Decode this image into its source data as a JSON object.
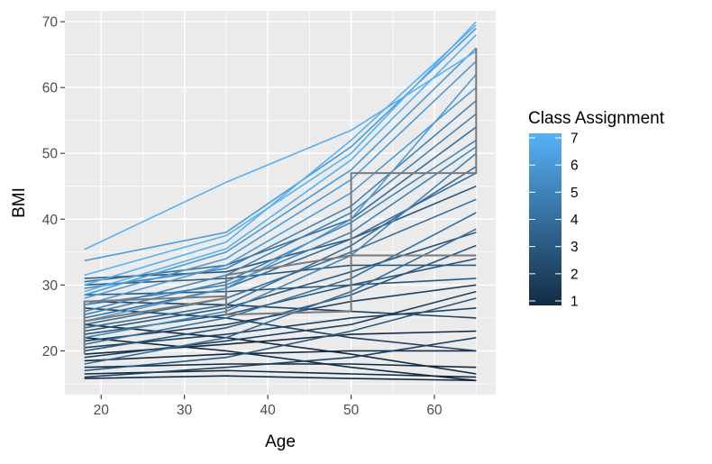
{
  "chart_data": {
    "type": "line",
    "xlabel": "Age",
    "ylabel": "BMI",
    "xlim": [
      15.65,
      67.35
    ],
    "ylim": [
      13.35,
      71.65
    ],
    "x_ticks": [
      20,
      30,
      40,
      50,
      60
    ],
    "y_ticks": [
      20,
      30,
      40,
      50,
      60,
      70
    ],
    "x_measurement_points": [
      18,
      35,
      50,
      65
    ],
    "grid": true,
    "background": "#EBEBEB",
    "legend": {
      "title": "Class Assignment",
      "position": "right",
      "type": "colorbar",
      "min": 1,
      "max": 7,
      "breaks": [
        1,
        2,
        3,
        4,
        5,
        6,
        7
      ],
      "low_color": "#132B43",
      "high_color": "#56B1F7"
    },
    "series": [
      {
        "class": 7,
        "values": [
          35.4,
          45.6,
          53.5,
          65.5
        ]
      },
      {
        "class": 6,
        "values": [
          33.7,
          38.0,
          51.0,
          69.0
        ]
      },
      {
        "class": 7,
        "values": [
          31.5,
          37.5,
          50.0,
          70.0
        ]
      },
      {
        "class": 7,
        "values": [
          29.0,
          35.5,
          49.0,
          68.0
        ]
      },
      {
        "class": 6,
        "values": [
          28.0,
          34.0,
          46.0,
          64.0
        ]
      },
      {
        "class": 6,
        "values": [
          27.0,
          33.0,
          44.0,
          60.0
        ]
      },
      {
        "class": 5,
        "values": [
          26.0,
          31.5,
          41.0,
          56.0
        ]
      },
      {
        "class": 5,
        "values": [
          25.5,
          30.5,
          39.5,
          52.0
        ]
      },
      {
        "class": 4,
        "values": [
          25.0,
          29.5,
          37.0,
          47.0
        ]
      },
      {
        "class": 4,
        "values": [
          24.0,
          28.0,
          35.0,
          43.0
        ]
      },
      {
        "class": 3,
        "values": [
          23.0,
          26.5,
          32.0,
          38.0
        ]
      },
      {
        "class": 3,
        "values": [
          22.5,
          25.5,
          30.0,
          34.0
        ]
      },
      {
        "class": 2,
        "values": [
          21.5,
          24.0,
          27.5,
          30.0
        ]
      },
      {
        "class": 2,
        "values": [
          20.5,
          22.5,
          25.0,
          26.5
        ]
      },
      {
        "class": 1,
        "values": [
          19.5,
          21.0,
          22.5,
          23.0
        ]
      },
      {
        "class": 1,
        "values": [
          18.5,
          19.5,
          20.0,
          20.0
        ]
      },
      {
        "class": 1,
        "values": [
          17.5,
          18.0,
          18.0,
          17.5
        ]
      },
      {
        "class": 1,
        "values": [
          16.5,
          17.0,
          16.5,
          16.0
        ]
      },
      {
        "class": 1,
        "values": [
          15.8,
          16.2,
          15.8,
          15.5
        ]
      },
      {
        "class": 2,
        "values": [
          27.5,
          27.0,
          26.0,
          25.0
        ]
      },
      {
        "class": 3,
        "values": [
          30.0,
          31.0,
          33.0,
          33.0
        ]
      },
      {
        "class": 3,
        "values": [
          31.0,
          32.0,
          37.0,
          45.0
        ]
      },
      {
        "class": 4,
        "values": [
          30.5,
          33.0,
          40.0,
          54.0
        ]
      },
      {
        "class": 5,
        "values": [
          29.5,
          32.5,
          42.0,
          58.0
        ]
      },
      {
        "class": 4,
        "values": [
          23.5,
          27.0,
          36.0,
          48.0
        ]
      },
      {
        "class": 5,
        "values": [
          22.0,
          26.0,
          34.5,
          50.0
        ]
      },
      {
        "class": 6,
        "values": [
          24.5,
          29.5,
          40.0,
          62.0
        ]
      },
      {
        "class": 2,
        "values": [
          19.0,
          21.5,
          24.0,
          29.0
        ]
      },
      {
        "class": 3,
        "values": [
          20.0,
          23.5,
          28.5,
          36.0
        ]
      },
      {
        "class": 4,
        "values": [
          21.0,
          25.0,
          31.0,
          41.0
        ]
      },
      {
        "class": 1,
        "values": [
          24.0,
          22.0,
          19.5,
          16.5
        ]
      },
      {
        "class": 2,
        "values": [
          26.5,
          25.0,
          22.0,
          20.0
        ]
      },
      {
        "class": 1,
        "values": [
          22.0,
          20.0,
          17.5,
          15.5
        ]
      },
      {
        "class": 3,
        "values": [
          28.5,
          29.0,
          30.0,
          31.0
        ]
      },
      {
        "class": 5,
        "values": [
          27.0,
          30.0,
          38.0,
          51.0
        ]
      },
      {
        "class": 6,
        "values": [
          28.5,
          35.0,
          47.5,
          66.0
        ]
      },
      {
        "class": 7,
        "values": [
          30.0,
          36.5,
          52.0,
          69.5
        ]
      },
      {
        "class": 3,
        "values": [
          17.0,
          19.0,
          23.0,
          28.0
        ]
      },
      {
        "class": 2,
        "values": [
          16.0,
          17.5,
          19.0,
          22.0
        ]
      },
      {
        "class": 4,
        "values": [
          18.0,
          22.0,
          29.0,
          38.5
        ]
      }
    ],
    "mean_trajectories": [
      {
        "x": [
          18,
          18,
          35,
          35,
          50,
          50,
          65
        ],
        "y": [
          19.5,
          27.5,
          28.3,
          25.5,
          26.0,
          34.5,
          34.5
        ]
      },
      {
        "x": [
          18,
          35,
          35,
          50,
          50,
          65,
          65
        ],
        "y": [
          24.5,
          28.0,
          31.5,
          34.5,
          47.0,
          47.0,
          66.0
        ]
      }
    ]
  }
}
